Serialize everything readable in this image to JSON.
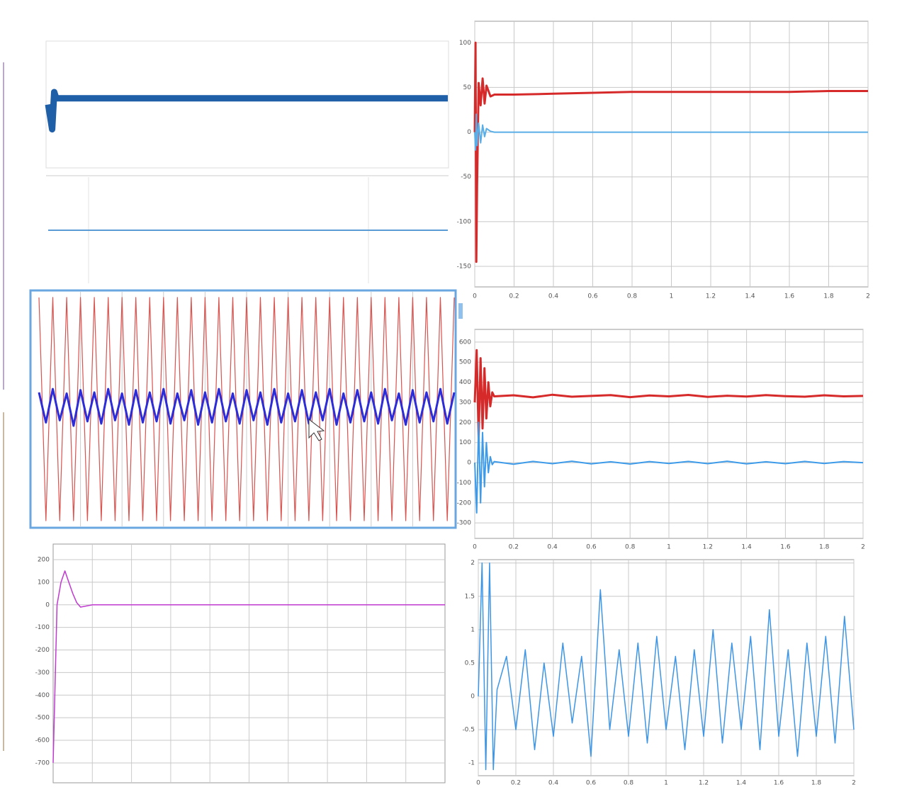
{
  "chart_data": [
    {
      "type": "line",
      "x": [
        0,
        0.01,
        0.015,
        0.02,
        1
      ],
      "xlim": [
        0,
        1
      ],
      "ylim": [
        -1,
        1
      ],
      "series": [
        {
          "color": "#1f5fa8",
          "width": 9,
          "values": [
            0,
            -0.4,
            0.2,
            0.1,
            0.1
          ]
        }
      ]
    },
    {
      "type": "line",
      "x": [
        0,
        1
      ],
      "xlim": [
        0,
        1
      ],
      "ylim": [
        -1,
        1
      ],
      "series": [
        {
          "color": "#5b9bd5",
          "width": 2,
          "values": [
            0,
            0
          ]
        }
      ]
    },
    {
      "type": "line",
      "x": [
        0,
        0.004,
        0.008,
        0.012,
        0.02,
        0.03,
        0.04,
        0.05,
        0.06,
        0.08,
        0.1,
        0.2,
        0.4,
        0.6,
        0.8,
        1,
        1.2,
        1.4,
        1.6,
        1.8,
        2
      ],
      "xlim": [
        0,
        2
      ],
      "ylim": [
        -173,
        124
      ],
      "xticks": [
        0,
        0.2,
        0.4,
        0.6,
        0.8,
        1,
        1.2,
        1.4,
        1.6,
        1.8,
        2
      ],
      "yticks": [
        100,
        50,
        0,
        -50,
        -100,
        -150
      ],
      "grid": true,
      "series": [
        {
          "color": "#d62a2a",
          "width": 3,
          "values": [
            0,
            100,
            -145,
            -60,
            55,
            30,
            60,
            32,
            52,
            40,
            42,
            42,
            43,
            44,
            45,
            45,
            45,
            45,
            45,
            46,
            46
          ]
        },
        {
          "color": "#5aaee8",
          "width": 2,
          "values": [
            0,
            -20,
            20,
            -15,
            10,
            -12,
            8,
            -5,
            4,
            1,
            0,
            0,
            0,
            0,
            0,
            0,
            0,
            0,
            0,
            0,
            0
          ]
        }
      ]
    },
    {
      "type": "line",
      "x": [
        0,
        0.5,
        1,
        1.5,
        2,
        2.5,
        3,
        3.5,
        4,
        4.5,
        5,
        5.5,
        6,
        6.5,
        7,
        7.5,
        8,
        8.5,
        9,
        9.5,
        10,
        10.5,
        11,
        11.5,
        12,
        12.5,
        13,
        13.5,
        14,
        14.5,
        15,
        15.5,
        16,
        16.5,
        17,
        17.5,
        18,
        18.5,
        19,
        19.5,
        20,
        20.5,
        21,
        21.5,
        22,
        22.5,
        23,
        23.5,
        24,
        24.5,
        25,
        25.5,
        26,
        26.5,
        27,
        27.5,
        28,
        28.5,
        29,
        29.5,
        30
      ],
      "xlim": [
        0,
        30
      ],
      "ylim": [
        -1.05,
        1.05
      ],
      "series": [
        {
          "color": "#d9534f",
          "width": 1.2,
          "values": [
            1,
            -1,
            1,
            -1,
            1,
            -1,
            1,
            -1,
            1,
            -1,
            1,
            -1,
            1,
            -1,
            1,
            -1,
            1,
            -1,
            1,
            -1,
            1,
            -1,
            1,
            -1,
            1,
            -1,
            1,
            -1,
            1,
            -1,
            1,
            -1,
            1,
            -1,
            1,
            -1,
            1,
            -1,
            1,
            -1,
            1,
            -1,
            1,
            -1,
            1,
            -1,
            1,
            -1,
            1,
            -1,
            1,
            -1,
            1,
            -1,
            1,
            -1,
            1,
            -1,
            1,
            -1,
            1
          ]
        },
        {
          "color": "#2c2cd8",
          "width": 3,
          "values": [
            0.15,
            -0.12,
            0.18,
            -0.1,
            0.14,
            -0.15,
            0.17,
            -0.11,
            0.15,
            -0.13,
            0.18,
            -0.1,
            0.14,
            -0.14,
            0.17,
            -0.12,
            0.15,
            -0.11,
            0.18,
            -0.13,
            0.14,
            -0.1,
            0.17,
            -0.14,
            0.15,
            -0.12,
            0.18,
            -0.11,
            0.14,
            -0.13,
            0.17,
            -0.1,
            0.15,
            -0.14,
            0.18,
            -0.12,
            0.14,
            -0.11,
            0.17,
            -0.13,
            0.15,
            -0.1,
            0.18,
            -0.14,
            0.14,
            -0.12,
            0.17,
            -0.11,
            0.15,
            -0.13,
            0.18,
            -0.1,
            0.14,
            -0.14,
            0.17,
            -0.12,
            0.15,
            -0.11,
            0.18,
            -0.13,
            0.15
          ]
        }
      ]
    },
    {
      "type": "line",
      "x": [
        0,
        0.01,
        0.02,
        0.03,
        0.04,
        0.05,
        0.06,
        0.07,
        0.08,
        0.09,
        0.1,
        0.2,
        0.3,
        0.4,
        0.5,
        0.6,
        0.7,
        0.8,
        0.9,
        1,
        1.1,
        1.2,
        1.3,
        1.4,
        1.5,
        1.6,
        1.7,
        1.8,
        1.9,
        2
      ],
      "xlim": [
        0,
        2
      ],
      "ylim": [
        -377,
        663
      ],
      "xticks": [
        0,
        0.2,
        0.4,
        0.6,
        0.8,
        1,
        1.2,
        1.4,
        1.6,
        1.8,
        2
      ],
      "yticks": [
        600,
        500,
        400,
        300,
        200,
        100,
        0,
        -100,
        -200,
        -300
      ],
      "grid": true,
      "series": [
        {
          "color": "#d62a2a",
          "width": 3,
          "values": [
            300,
            560,
            120,
            520,
            170,
            470,
            220,
            400,
            280,
            350,
            330,
            335,
            325,
            338,
            328,
            332,
            336,
            326,
            334,
            330,
            337,
            327,
            333,
            329,
            336,
            331,
            328,
            335,
            330,
            332
          ]
        },
        {
          "color": "#3d9be9",
          "width": 2,
          "values": [
            0,
            -250,
            200,
            -200,
            150,
            -120,
            100,
            -50,
            30,
            -10,
            5,
            -8,
            6,
            -5,
            7,
            -6,
            4,
            -7,
            5,
            -4,
            6,
            -5,
            7,
            -6,
            4,
            -5,
            6,
            -4,
            5,
            0
          ]
        }
      ]
    },
    {
      "type": "line",
      "x": [
        0,
        0.01,
        0.02,
        0.03,
        0.04,
        0.05,
        0.06,
        0.07,
        0.1,
        1
      ],
      "xlim": [
        0,
        1
      ],
      "ylim": [
        -788,
        269
      ],
      "yticks": [
        200,
        100,
        0,
        -100,
        -200,
        -300,
        -400,
        -500,
        -600,
        -700
      ],
      "grid": true,
      "series": [
        {
          "color": "#c03ad0",
          "width": 1.5,
          "values": [
            -700,
            0,
            100,
            150,
            100,
            50,
            10,
            -10,
            0,
            0
          ]
        }
      ]
    },
    {
      "type": "line",
      "x": [
        0,
        0.02,
        0.04,
        0.06,
        0.08,
        0.1,
        0.15,
        0.2,
        0.25,
        0.3,
        0.35,
        0.4,
        0.45,
        0.5,
        0.55,
        0.6,
        0.65,
        0.7,
        0.75,
        0.8,
        0.85,
        0.9,
        0.95,
        1,
        1.05,
        1.1,
        1.15,
        1.2,
        1.25,
        1.3,
        1.35,
        1.4,
        1.45,
        1.5,
        1.55,
        1.6,
        1.65,
        1.7,
        1.75,
        1.8,
        1.85,
        1.9,
        1.95,
        2
      ],
      "xlim": [
        0,
        2
      ],
      "ylim": [
        -1.19,
        2.05
      ],
      "xticks": [
        0,
        0.2,
        0.4,
        0.6,
        0.8,
        1,
        1.2,
        1.4,
        1.6,
        1.8,
        2
      ],
      "yticks": [
        2,
        1.5,
        1,
        0.5,
        0,
        -0.5,
        -1
      ],
      "grid": true,
      "series": [
        {
          "color": "#3d95e6",
          "width": 1.5,
          "values": [
            0,
            2,
            -1.1,
            2,
            -1.1,
            0.1,
            0.6,
            -0.5,
            0.7,
            -0.8,
            0.5,
            -0.6,
            0.8,
            -0.4,
            0.6,
            -0.9,
            1.6,
            -0.5,
            0.7,
            -0.6,
            0.8,
            -0.7,
            0.9,
            -0.5,
            0.6,
            -0.8,
            0.7,
            -0.6,
            1.0,
            -0.7,
            0.8,
            -0.5,
            0.9,
            -0.8,
            1.3,
            -0.6,
            0.7,
            -0.9,
            0.8,
            -0.6,
            0.9,
            -0.7,
            1.2,
            -0.5
          ]
        }
      ]
    }
  ]
}
